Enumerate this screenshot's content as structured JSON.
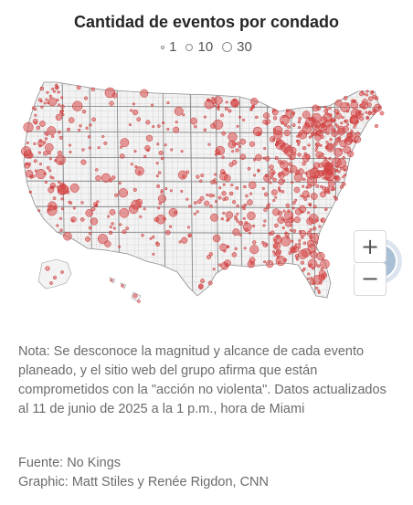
{
  "title": "Cantidad de eventos por condado",
  "legend": {
    "items": [
      {
        "label": "1"
      },
      {
        "label": "10"
      },
      {
        "label": "30"
      }
    ]
  },
  "map": {
    "dot_color": "#d94b4b",
    "dot_stroke": "#c73232",
    "land_color": "#f3f3f3",
    "county_line_color": "#cfcfcf",
    "state_line_color": "#8a8a8a"
  },
  "controls": {
    "zoom_in": "+",
    "zoom_out": "−"
  },
  "note": "Nota: Se desconoce la magnitud y alcance de cada evento planeado, y el sitio web del grupo afirma que están comprometidos con la \"acción no violenta\". Datos actualizados al 11 de junio de 2025 a la 1 p.m., hora de Miami",
  "source": {
    "fuente": "Fuente: No Kings",
    "graphic": "Graphic: Matt Stiles y Renée Rigdon, CNN"
  }
}
